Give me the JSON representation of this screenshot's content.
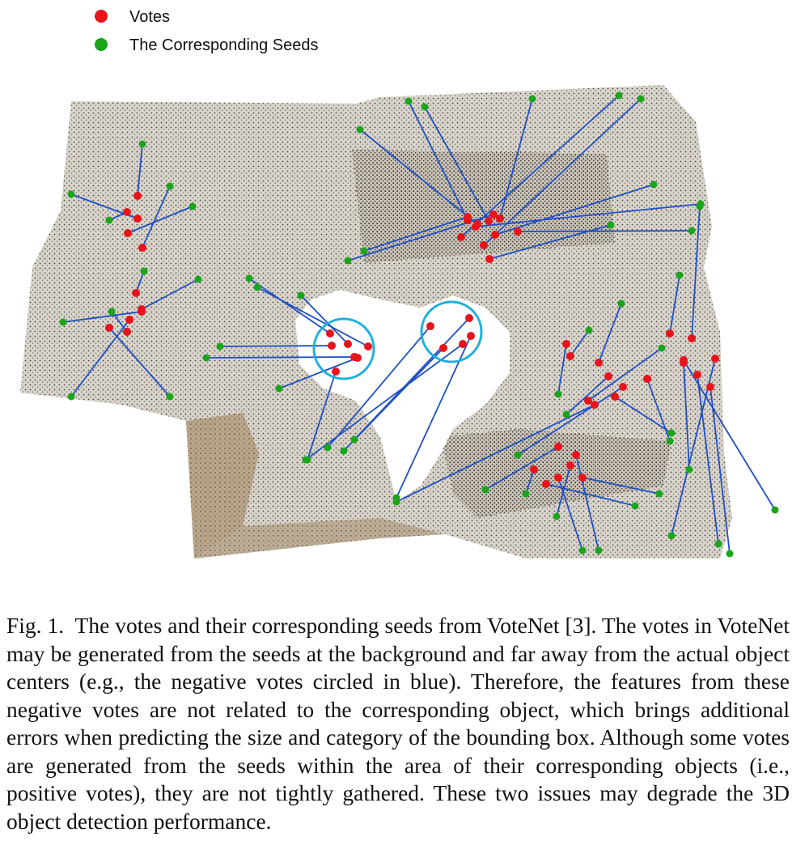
{
  "legend": {
    "votes_label": "Votes",
    "seeds_label": "The Corresponding Seeds",
    "vote_color": "#e8141a",
    "seed_color": "#1aa51a",
    "line_color": "#1f4fc4",
    "circle_color": "#1cb0e0"
  },
  "caption": {
    "fig_label": "Fig. 1.",
    "text": "The votes and their corresponding seeds from VoteNet [3]. The votes in VoteNet may be generated from the seeds at the background and far away from the actual object centers (e.g., the negative votes circled in blue). Therefore, the features from these negative votes are not related to the corresponding object, which brings additional errors when predicting the size and category of the bounding box. Although some votes are generated from the seeds within the area of their corresponding objects (i.e., positive votes), they are not tightly gathered. These two issues may degrade the 3D object detection performance."
  }
}
